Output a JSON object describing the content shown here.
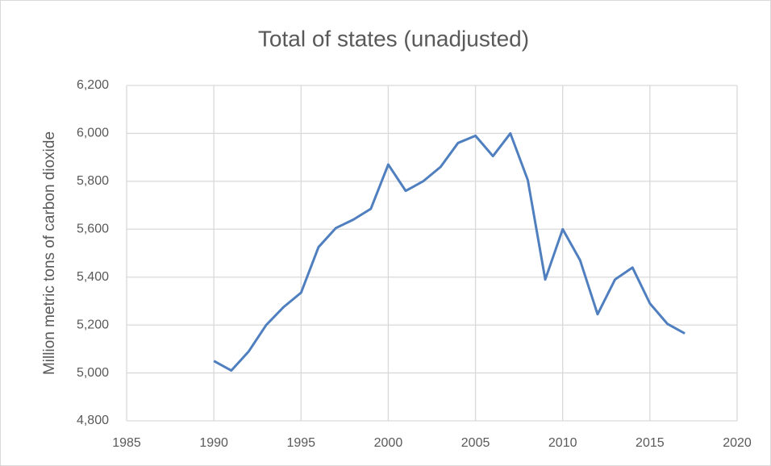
{
  "chart_data": {
    "type": "line",
    "title": "Total of states (unadjusted)",
    "y_label": "Million metric tons of carbon dioxide",
    "x": [
      1990,
      1991,
      1992,
      1993,
      1994,
      1995,
      1996,
      1997,
      1998,
      1999,
      2000,
      2001,
      2002,
      2003,
      2004,
      2005,
      2006,
      2007,
      2008,
      2009,
      2010,
      2011,
      2012,
      2013,
      2014,
      2015,
      2016,
      2017
    ],
    "series": [
      {
        "name": "Total of states (unadjusted)",
        "color": "#4f7fbf",
        "values": [
          5050,
          5010,
          5090,
          5200,
          5275,
          5335,
          5525,
          5605,
          5640,
          5685,
          5870,
          5760,
          5800,
          5860,
          5960,
          5990,
          5905,
          6000,
          5805,
          5390,
          5600,
          5470,
          5245,
          5390,
          5440,
          5290,
          5205,
          5165
        ]
      }
    ],
    "xlim": [
      1985,
      2020
    ],
    "xticks": [
      1985,
      1990,
      1995,
      2000,
      2005,
      2010,
      2015,
      2020
    ],
    "ylim": [
      4800,
      6200
    ],
    "yticks": [
      {
        "value": 4800,
        "label": "4,800"
      },
      {
        "value": 5000,
        "label": "5,000"
      },
      {
        "value": 5200,
        "label": "5,200"
      },
      {
        "value": 5400,
        "label": "5,400"
      },
      {
        "value": 5600,
        "label": "5,600"
      },
      {
        "value": 5800,
        "label": "5,800"
      },
      {
        "value": 6000,
        "label": "6,000"
      },
      {
        "value": 6200,
        "label": "6,200"
      }
    ],
    "grid": true
  }
}
